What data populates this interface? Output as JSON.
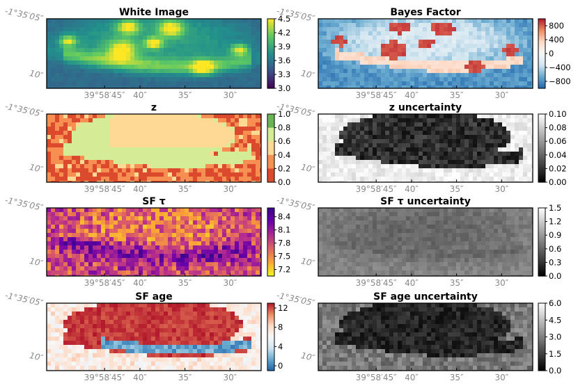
{
  "chart_data": [
    {
      "type": "heatmap",
      "title": "White Image",
      "colormap": "viridis",
      "colorbar": {
        "ticks": [
          "3.0",
          "3.3",
          "3.6",
          "3.9",
          "4.2",
          "4.5"
        ],
        "range": [
          3.0,
          4.5
        ]
      },
      "ra_ticks": [
        "39°58′45″",
        "40″",
        "35″",
        "30″"
      ],
      "dec_ticks": [
        "-1°35′05″",
        "10″"
      ]
    },
    {
      "type": "heatmap",
      "title": "Bayes Factor",
      "colormap": "red-white-blue (diverging)",
      "colorbar": {
        "ticks": [
          "800",
          "400",
          "0",
          "−400",
          "−800"
        ],
        "range": [
          -1000,
          1000
        ]
      },
      "ra_ticks": [
        "39°58′45″",
        "40″",
        "35″",
        "30″"
      ],
      "dec_ticks": [
        "-1°35′05″",
        "10″"
      ]
    },
    {
      "type": "heatmap",
      "title": "z",
      "colormap": "red-yellow-green (discrete)",
      "colorbar": {
        "ticks": [
          "1.0",
          "0.8",
          "0.6",
          "0.4",
          "0.2",
          "0.0"
        ],
        "range": [
          0.0,
          1.0
        ]
      },
      "ra_ticks": [
        "39°58′45″",
        "40″",
        "35″",
        "30″"
      ],
      "dec_ticks": [
        "-1°35′05″",
        "10″"
      ]
    },
    {
      "type": "heatmap",
      "title": "z uncertainty",
      "colormap": "gray",
      "colorbar": {
        "ticks": [
          "0.10",
          "0.08",
          "0.06",
          "0.04",
          "0.02",
          "0.00"
        ],
        "range": [
          0.0,
          0.1
        ]
      },
      "ra_ticks": [
        "39°58′45″",
        "40″",
        "35″",
        "30″"
      ],
      "dec_ticks": [
        "-1°35′05″",
        "10″"
      ]
    },
    {
      "type": "heatmap",
      "title": "SF τ",
      "colormap": "plasma (reversed)",
      "colorbar": {
        "ticks": [
          "8.4",
          "8.1",
          "7.8",
          "7.5",
          "7.2"
        ],
        "range": [
          7.05,
          8.6
        ]
      },
      "ra_ticks": [
        "39°58′45″",
        "40″",
        "35″",
        "30″"
      ],
      "dec_ticks": [
        "-1°35′05″",
        "10″"
      ]
    },
    {
      "type": "heatmap",
      "title": "SF τ uncertainty",
      "colormap": "gray",
      "colorbar": {
        "ticks": [
          "1.5",
          "1.2",
          "0.9",
          "0.6",
          "0.3",
          "0.0"
        ],
        "range": [
          0.0,
          1.5
        ]
      },
      "ra_ticks": [
        "39°58′45″",
        "40″",
        "35″",
        "30″"
      ],
      "dec_ticks": [
        "-1°35′05″",
        "10″"
      ]
    },
    {
      "type": "heatmap",
      "title": "SF age",
      "colormap": "red-white-blue (reversed)",
      "colorbar": {
        "ticks": [
          "12",
          "8",
          "4",
          "0"
        ],
        "range": [
          -1,
          13
        ]
      },
      "ra_ticks": [
        "39°58′45″",
        "40″",
        "35″",
        "30″"
      ],
      "dec_ticks": [
        "-1°35′05″",
        "10″"
      ]
    },
    {
      "type": "heatmap",
      "title": "SF age uncertainty",
      "colormap": "gray",
      "colorbar": {
        "ticks": [
          "6.0",
          "4.5",
          "3.0",
          "1.5",
          "0.0"
        ],
        "range": [
          0.0,
          6.0
        ]
      },
      "ra_ticks": [
        "39°58′45″",
        "40″",
        "35″",
        "30″"
      ],
      "dec_ticks": [
        "-1°35′05″",
        "10″"
      ]
    }
  ],
  "colors": {
    "viridis": [
      "#440154",
      "#3b528b",
      "#21918c",
      "#5ec962",
      "#fde725"
    ],
    "rdbu": [
      "#b2182b",
      "#ef8a62",
      "#fddbc7",
      "#f7f7f7",
      "#d1e5f0",
      "#67a9cf",
      "#2166ac"
    ],
    "rdylgn": [
      "#c62a1e",
      "#ef6a3c",
      "#fdb366",
      "#ffffbf",
      "#a6d96a",
      "#2f8e3f"
    ],
    "plasma_r": [
      "#f0f921",
      "#fca636",
      "#e16462",
      "#b12a90",
      "#6a00a8",
      "#3a058f"
    ],
    "gray": [
      "#000000",
      "#ffffff"
    ],
    "coord_text": "#888888"
  }
}
